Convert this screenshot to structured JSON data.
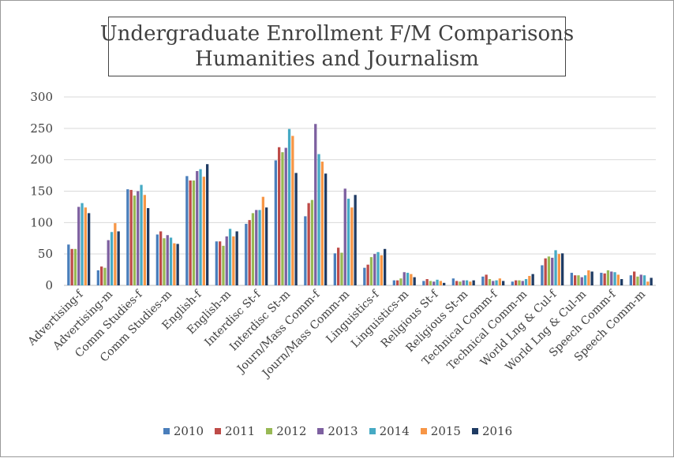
{
  "chart_data": {
    "type": "bar",
    "title": "Undergraduate Enrollment F/M Comparisons",
    "subtitle": "Humanities and Journalism",
    "xlabel": "",
    "ylabel": "",
    "ylim": [
      0,
      300
    ],
    "yticks": [
      0,
      50,
      100,
      150,
      200,
      250,
      300
    ],
    "grid": true,
    "legend_position": "bottom",
    "categories": [
      "Advertising-f",
      "Advertising-m",
      "Comm Studies-f",
      "Comm Studies-m",
      "English-f",
      "English-m",
      "Interdisc St-f",
      "Interdisc St-m",
      "Journ/Mass Comm-f",
      "Journ/Mass Comm-m",
      "Linguistics-f",
      "Linguistics-m",
      "Religious St-f",
      "Religious St-m",
      "Technical Comm-f",
      "Technical Comm-m",
      "World Lng & Cul-f",
      "World Lng & Cul-m",
      "Speech Comm-f",
      "Speech Comm-m"
    ],
    "series": [
      {
        "name": "2010",
        "color": "#4a7ebb",
        "values": [
          65,
          24,
          153,
          81,
          174,
          70,
          98,
          199,
          110,
          51,
          28,
          8,
          7,
          11,
          14,
          6,
          32,
          20,
          20,
          16
        ]
      },
      {
        "name": "2011",
        "color": "#be4b48",
        "values": [
          58,
          30,
          152,
          86,
          167,
          70,
          104,
          220,
          131,
          60,
          33,
          8,
          10,
          7,
          17,
          8,
          43,
          16,
          19,
          22
        ]
      },
      {
        "name": "2012",
        "color": "#98b954",
        "values": [
          58,
          28,
          143,
          75,
          167,
          63,
          115,
          212,
          136,
          52,
          45,
          11,
          7,
          6,
          10,
          8,
          46,
          16,
          24,
          14
        ]
      },
      {
        "name": "2013",
        "color": "#7d60a0",
        "values": [
          125,
          72,
          150,
          80,
          182,
          78,
          120,
          219,
          257,
          154,
          50,
          21,
          6,
          8,
          7,
          7,
          44,
          13,
          22,
          17
        ]
      },
      {
        "name": "2014",
        "color": "#46aac4",
        "values": [
          131,
          85,
          160,
          76,
          185,
          90,
          120,
          249,
          209,
          138,
          53,
          20,
          9,
          8,
          8,
          10,
          56,
          16,
          21,
          16
        ]
      },
      {
        "name": "2015",
        "color": "#f79646",
        "values": [
          124,
          99,
          144,
          67,
          173,
          78,
          141,
          238,
          197,
          124,
          48,
          18,
          7,
          6,
          11,
          15,
          50,
          24,
          17,
          6
        ]
      },
      {
        "name": "2016",
        "color": "#1f3b63",
        "values": [
          115,
          86,
          123,
          66,
          193,
          86,
          124,
          179,
          178,
          144,
          58,
          13,
          4,
          8,
          7,
          18,
          51,
          22,
          10,
          12
        ]
      }
    ]
  }
}
